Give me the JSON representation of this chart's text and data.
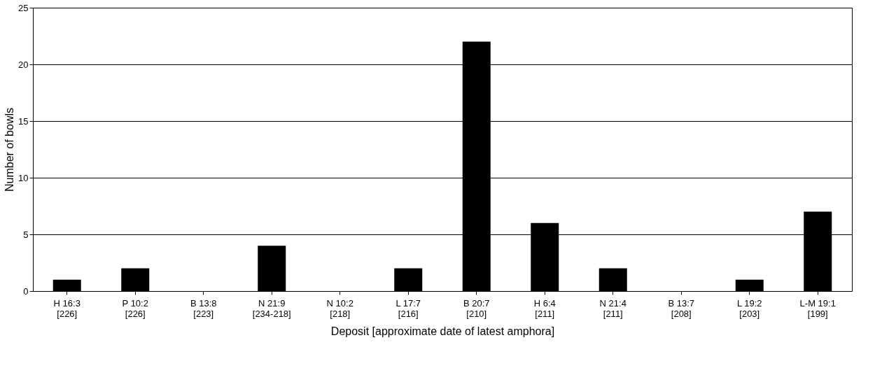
{
  "chart_data": {
    "type": "bar",
    "xlabel": "Deposit [approximate date of latest amphora]",
    "ylabel": "Number of bowls",
    "categories": [
      "H 16:3\n[226]",
      "P 10:2\n[226]",
      "B 13:8\n[223]",
      "N 21:9\n[234-218]",
      "N 10:2\n[218]",
      "L 17:7\n[216]",
      "B 20:7\n[210]",
      "H 6:4\n[211]",
      "N 21:4\n[211]",
      "B 13:7\n[208]",
      "L 19:2\n[203]",
      "L-M 19:1\n[199]"
    ],
    "values": [
      1,
      2,
      0,
      4,
      0,
      2,
      22,
      6,
      2,
      0,
      1,
      7
    ],
    "color": "#000000",
    "ylim": [
      0,
      25
    ],
    "yticks": [
      0,
      5,
      10,
      15,
      20,
      25
    ],
    "grid": "y"
  }
}
